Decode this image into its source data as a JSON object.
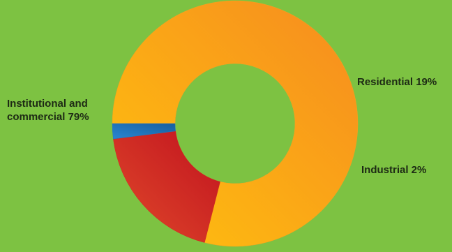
{
  "background_color": "#7dc242",
  "chart_data": {
    "type": "pie",
    "donut": true,
    "title": "",
    "slices": [
      {
        "label": "Institutional and commercial 79%",
        "label_lines": [
          "Institutional and",
          "commercial 79%"
        ],
        "value": 79,
        "color": "#f7a21e",
        "gradient": [
          "#ffc20e",
          "#f68b1f"
        ]
      },
      {
        "label": "Residential 19%",
        "label_lines": [
          "Residential 19%"
        ],
        "value": 19,
        "color": "#d52b1e",
        "gradient": [
          "#e04a2a",
          "#c1121f"
        ]
      },
      {
        "label": "Industrial 2%",
        "label_lines": [
          "Industrial 2%"
        ],
        "value": 2,
        "color": "#1f76c2",
        "gradient": [
          "#2a86d0",
          "#155fa0"
        ]
      }
    ],
    "legend": "none"
  }
}
